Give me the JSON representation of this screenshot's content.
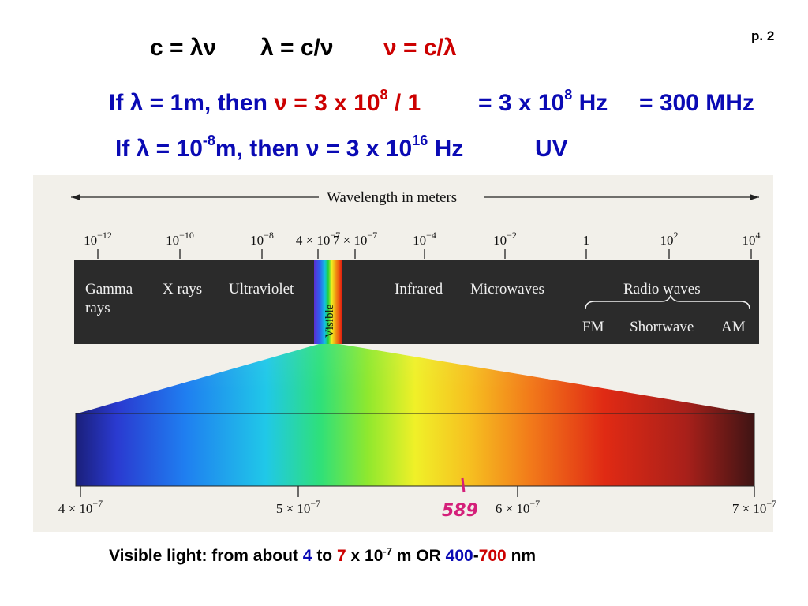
{
  "page_number": "p. 2",
  "equations": {
    "eq1": "c = λν",
    "eq2": "λ = c/ν",
    "eq3": "ν = c/λ"
  },
  "example1": {
    "prefix": "If λ = 1m, then ",
    "nu_part": "ν = 3 x 10",
    "nu_exp": "8",
    "nu_tail": " / 1",
    "result_a": "= 3 x 10",
    "result_a_exp": "8",
    "result_a_tail": " Hz",
    "result_b": "=  300 MHz"
  },
  "example2": {
    "prefix": "If λ = 10",
    "exp": "-8",
    "mid": "m, then ν = 3 x 10",
    "exp2": "16",
    "tail": " Hz",
    "region": "UV"
  },
  "spectrum": {
    "axis_title": "Wavelength in meters",
    "top_ticks": [
      {
        "base": "10",
        "exp": "−12"
      },
      {
        "base": "10",
        "exp": "−10"
      },
      {
        "base": "10",
        "exp": "−8"
      },
      {
        "base": "4 × 10",
        "exp": "−7"
      },
      {
        "base": "7 × 10",
        "exp": "−7"
      },
      {
        "base": "10",
        "exp": "−4"
      },
      {
        "base": "10",
        "exp": "−2"
      },
      {
        "base": "1",
        "exp": ""
      },
      {
        "base": "10",
        "exp": "2"
      },
      {
        "base": "10",
        "exp": "4"
      }
    ],
    "regions": {
      "gamma_line1": "Gamma",
      "gamma_line2": "rays",
      "xrays": "X rays",
      "uv": "Ultraviolet",
      "visible": "Visible",
      "infrared": "Infrared",
      "microwaves": "Microwaves",
      "radio": "Radio waves",
      "fm": "FM",
      "shortwave": "Shortwave",
      "am": "AM"
    },
    "bottom_ticks": [
      {
        "base": "4 × 10",
        "exp": "−7"
      },
      {
        "base": "5 × 10",
        "exp": "−7"
      },
      {
        "base": "6 × 10",
        "exp": "−7"
      },
      {
        "base": "7 × 10",
        "exp": "−7"
      }
    ],
    "handwritten": "589",
    "colors": {
      "frame": "#f2f0ea",
      "band": "#2b2b2b",
      "text": "#f0f0f0",
      "handwriting": "#d4207a"
    }
  },
  "caption": {
    "part1": "Visible light: from about ",
    "num4": "4",
    "part2": " to ",
    "num7": "7",
    "part3": " x 10",
    "exp": "-7",
    "part4": " m OR ",
    "num400": "400",
    "dash": "-",
    "num700": "700",
    "part5": " nm"
  }
}
